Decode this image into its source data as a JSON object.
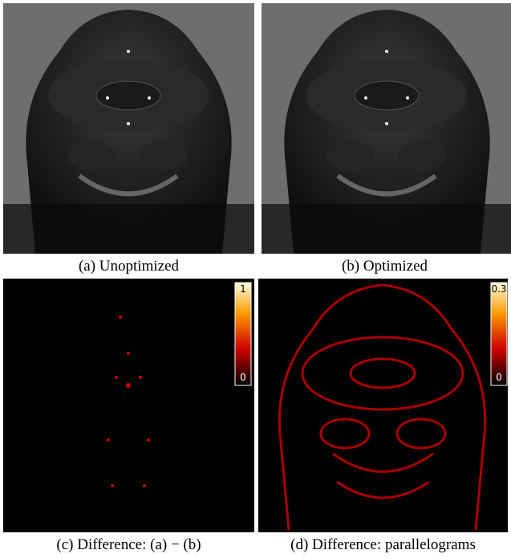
{
  "figure": {
    "panels": [
      {
        "caption": "(a) Unoptimized"
      },
      {
        "caption": "(b) Optimized"
      },
      {
        "caption": "(c) Difference: (a) − (b)",
        "colorbar": {
          "max_label": "1",
          "min_label": "0"
        }
      },
      {
        "caption": "(d) Difference: parallelograms",
        "colorbar": {
          "max_label": "0.3",
          "min_label": "0"
        }
      }
    ]
  }
}
